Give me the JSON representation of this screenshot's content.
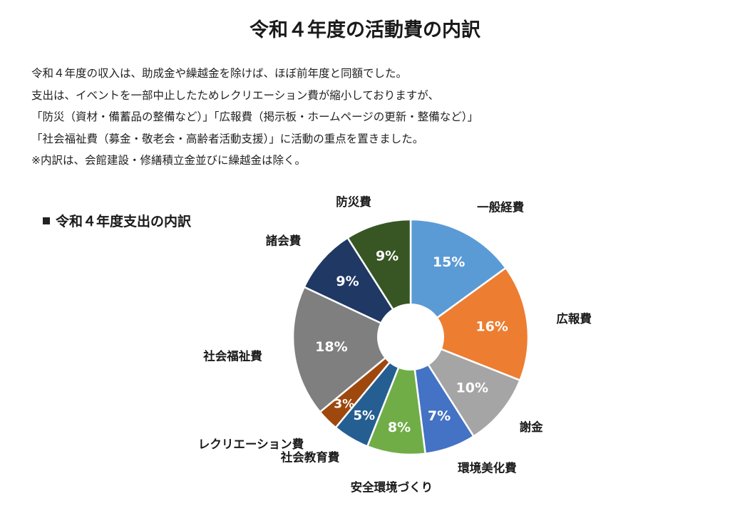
{
  "page": {
    "title": "令和４年度の活動費の内訳",
    "intro_lines": [
      "令和４年度の収入は、助成金や繰越金を除けば、ほぼ前年度と同額でした。",
      "支出は、イベントを一部中止したためレクリエーション費が縮小しておりますが、",
      "「防災（資材・備蓄品の整備など）」「広報費（掲示板・ホームページの更新・整備など）」",
      "「社会福祉費（募金・敬老会・高齢者活動支援）」に活動の重点を置きました。",
      "※内訳は、会館建設・修繕積立金並びに繰越金は除く。"
    ]
  },
  "chart_data": {
    "type": "pie",
    "title": "令和４年度支出の内訳",
    "donut": true,
    "unit": "%",
    "slices": [
      {
        "label": "一般経費",
        "value": 15,
        "display": "15%",
        "color": "#5b9bd5"
      },
      {
        "label": "広報費",
        "value": 16,
        "display": "16%",
        "color": "#ed7d31"
      },
      {
        "label": "謝金",
        "value": 10,
        "display": "10%",
        "color": "#a5a5a5"
      },
      {
        "label": "環境美化費",
        "value": 7,
        "display": "7%",
        "color": "#4472c4"
      },
      {
        "label": "安全環境づくり",
        "value": 8,
        "display": "8%",
        "color": "#70ad47"
      },
      {
        "label": "社会教育費",
        "value": 5,
        "display": "5%",
        "color": "#255e91"
      },
      {
        "label": "レクリエーション費",
        "value": 3,
        "display": "3%",
        "color": "#9e480e"
      },
      {
        "label": "社会福祉費",
        "value": 18,
        "display": "18%",
        "color": "#7f7f7f"
      },
      {
        "label": "諸会費",
        "value": 9,
        "display": "9%",
        "color": "#1f3864"
      },
      {
        "label": "防災費",
        "value": 9,
        "display": "9%",
        "color": "#375623"
      }
    ]
  }
}
